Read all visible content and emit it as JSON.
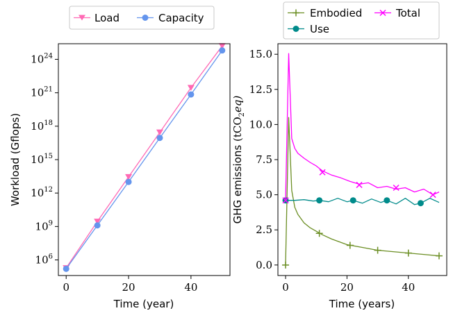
{
  "chart_data": [
    {
      "type": "line",
      "xlabel": "Time (year)",
      "ylabel": "Workload (Gflops)",
      "yscale": "log",
      "xlim": [
        -2.5,
        52.5
      ],
      "ylim_exp": [
        4.6,
        25.4
      ],
      "xticks": [
        "0",
        "20",
        "40"
      ],
      "yticks": [
        {
          "exp": 6,
          "base": "10",
          "sup": "6"
        },
        {
          "exp": 9,
          "base": "10",
          "sup": "9"
        },
        {
          "exp": 12,
          "base": "10",
          "sup": "12"
        },
        {
          "exp": 15,
          "base": "10",
          "sup": "15"
        },
        {
          "exp": 18,
          "base": "10",
          "sup": "18"
        },
        {
          "exp": 21,
          "base": "10",
          "sup": "21"
        },
        {
          "exp": 24,
          "base": "10",
          "sup": "24"
        }
      ],
      "legend": "top",
      "grid": false,
      "series": [
        {
          "name": "Load",
          "color": "#ff69b4",
          "marker": "triangle-down",
          "x": [
            0,
            10,
            20,
            30,
            40,
            50
          ],
          "log10_y": [
            5.28,
            9.45,
            13.45,
            17.45,
            21.45,
            25.2
          ]
        },
        {
          "name": "Capacity",
          "color": "#6495ed",
          "marker": "circle",
          "x": [
            0,
            10,
            20,
            30,
            40,
            50
          ],
          "log10_y": [
            5.2,
            9.1,
            13.0,
            16.95,
            20.85,
            24.8
          ]
        }
      ]
    },
    {
      "type": "line",
      "xlabel": "Time (years)",
      "ylabel": "GHG emissions",
      "ylabel_unit": {
        "pre": "(tCO",
        "sub": "2",
        "post": "eq)"
      },
      "xlim": [
        -2.5,
        52.5
      ],
      "ylim": [
        -0.75,
        15.75
      ],
      "xticks": [
        "0",
        "20",
        "40"
      ],
      "yticks": [
        "0.0",
        "2.5",
        "5.0",
        "7.5",
        "10.0",
        "12.5",
        "15.0"
      ],
      "legend": "top",
      "grid": false,
      "series": [
        {
          "name": "Embodied",
          "color": "#6b8e23",
          "marker": "plus",
          "x": [
            0,
            1,
            2,
            3,
            4,
            6,
            8,
            10,
            12,
            15,
            20,
            25,
            30,
            35,
            40,
            45,
            50
          ],
          "y": [
            0.0,
            10.5,
            5.3,
            4.1,
            3.6,
            3.0,
            2.65,
            2.4,
            2.15,
            1.85,
            1.45,
            1.25,
            1.05,
            0.95,
            0.85,
            0.75,
            0.65
          ],
          "marker_x": [
            0,
            11,
            21,
            30,
            40,
            50
          ],
          "marker_y": [
            0.0,
            2.25,
            1.4,
            1.05,
            0.85,
            0.65
          ]
        },
        {
          "name": "Use",
          "color": "#008b8b",
          "marker": "circle",
          "x": [
            0,
            3,
            6,
            9,
            11,
            14,
            17,
            20,
            22,
            25,
            28,
            31,
            33,
            36,
            39,
            42,
            44,
            47,
            50
          ],
          "y": [
            4.6,
            4.6,
            4.65,
            4.55,
            4.6,
            4.5,
            4.75,
            4.5,
            4.6,
            4.4,
            4.7,
            4.45,
            4.6,
            4.35,
            4.75,
            4.3,
            4.4,
            4.75,
            4.45
          ],
          "marker_x": [
            0,
            11,
            22,
            33,
            44
          ],
          "marker_y": [
            4.6,
            4.6,
            4.6,
            4.6,
            4.4
          ]
        },
        {
          "name": "Total",
          "color": "#ff00ff",
          "marker": "x",
          "x": [
            0,
            1,
            2,
            3,
            4,
            6,
            8,
            10,
            12,
            15,
            18,
            21,
            24,
            27,
            30,
            33,
            36,
            39,
            42,
            45,
            48,
            50
          ],
          "y": [
            4.6,
            15.05,
            9.0,
            8.3,
            7.95,
            7.6,
            7.3,
            7.05,
            6.7,
            6.4,
            6.2,
            5.95,
            5.75,
            5.85,
            5.5,
            5.6,
            5.4,
            5.5,
            5.2,
            5.4,
            5.0,
            5.2
          ],
          "marker_x": [
            0,
            12,
            24,
            36,
            48
          ],
          "marker_y": [
            4.6,
            6.6,
            5.7,
            5.5,
            5.0
          ]
        }
      ]
    }
  ]
}
